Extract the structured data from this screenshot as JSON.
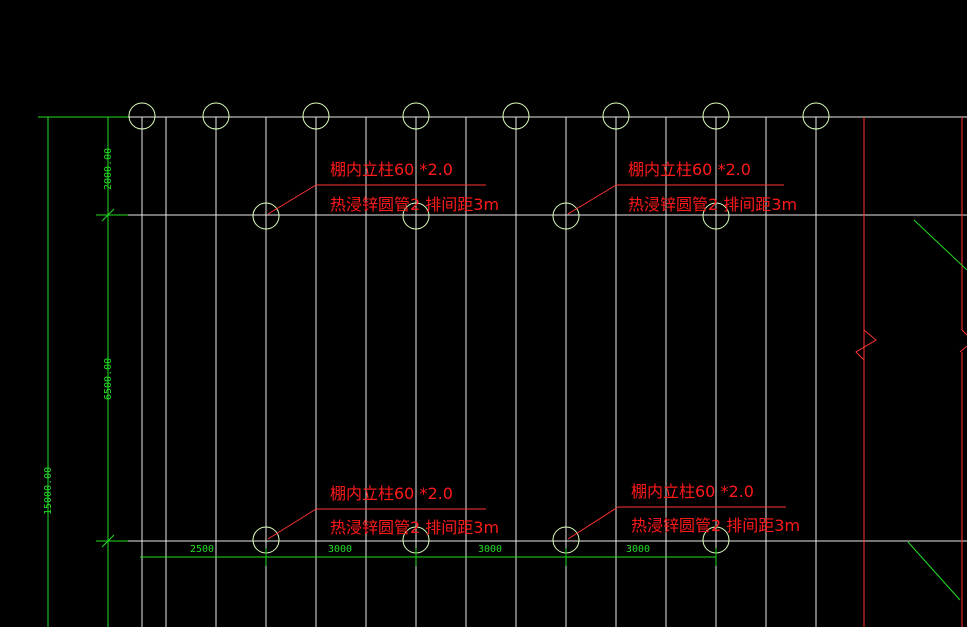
{
  "colors": {
    "background": "#000000",
    "grid_line": "#ffffff",
    "dimension": "#22dd22",
    "annotation": "#ff1a1a",
    "column_marker": "#ccff99"
  },
  "dimensions": {
    "total_height": "15000.00",
    "segment_top": "2000.00",
    "segment_middle": "6500.00",
    "bottom_spacings": [
      "2500",
      "3000",
      "3000",
      "3000"
    ]
  },
  "annotations": [
    {
      "line1": "棚内立柱60 *2.0",
      "line2": "热浸锌圆管2  排间距3m"
    },
    {
      "line1": "棚内立柱60 *2.0",
      "line2": "热浸锌圆管2  排间距3m"
    },
    {
      "line1": "棚内立柱60 *2.0",
      "line2": "热浸锌圆管2  排间距3m"
    },
    {
      "line1": "棚内立柱60 *2.0",
      "line2": "热浸锌圆管2  排间距3m"
    }
  ]
}
